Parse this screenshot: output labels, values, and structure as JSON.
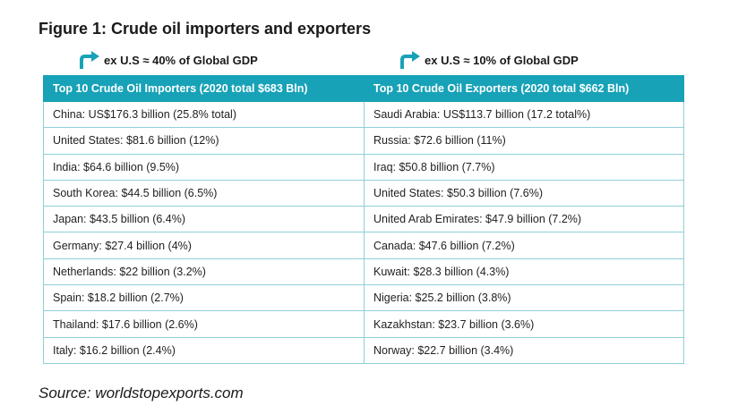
{
  "figure_title": "Figure 1: Crude oil importers and exporters",
  "notes": {
    "left": "ex U.S ≈ 40% of Global GDP",
    "right": "ex U.S ≈ 10% of Global GDP"
  },
  "colors": {
    "accent": "#17a2b8",
    "border": "#8ecfd9"
  },
  "icons": {
    "note_arrow": "turn-right-arrow-icon"
  },
  "table": {
    "headers": [
      "Top 10 Crude Oil Importers (2020 total $683 Bln)",
      "Top 10 Crude Oil Exporters (2020 total $662 Bln)"
    ],
    "rows": [
      [
        "China: US$176.3 billion (25.8% total)",
        "Saudi Arabia: US$113.7 billion (17.2 total%)"
      ],
      [
        "United States: $81.6 billion (12%)",
        "Russia: $72.6 billion (11%)"
      ],
      [
        "India: $64.6 billion (9.5%)",
        "Iraq: $50.8 billion (7.7%)"
      ],
      [
        "South Korea: $44.5 billion (6.5%)",
        "United States: $50.3 billion (7.6%)"
      ],
      [
        "Japan: $43.5 billion (6.4%)",
        "United Arab Emirates: $47.9 billion (7.2%)"
      ],
      [
        "Germany: $27.4 billion (4%)",
        "Canada: $47.6 billion (7.2%)"
      ],
      [
        "Netherlands: $22 billion (3.2%)",
        "Kuwait: $28.3 billion (4.3%)"
      ],
      [
        "Spain: $18.2 billion (2.7%)",
        "Nigeria: $25.2 billion (3.8%)"
      ],
      [
        "Thailand: $17.6 billion (2.6%)",
        "Kazakhstan: $23.7 billion (3.6%)"
      ],
      [
        "Italy: $16.2 billion (2.4%)",
        "Norway: $22.7 billion (3.4%)"
      ]
    ]
  },
  "source": "Source: worldstopexports.com"
}
